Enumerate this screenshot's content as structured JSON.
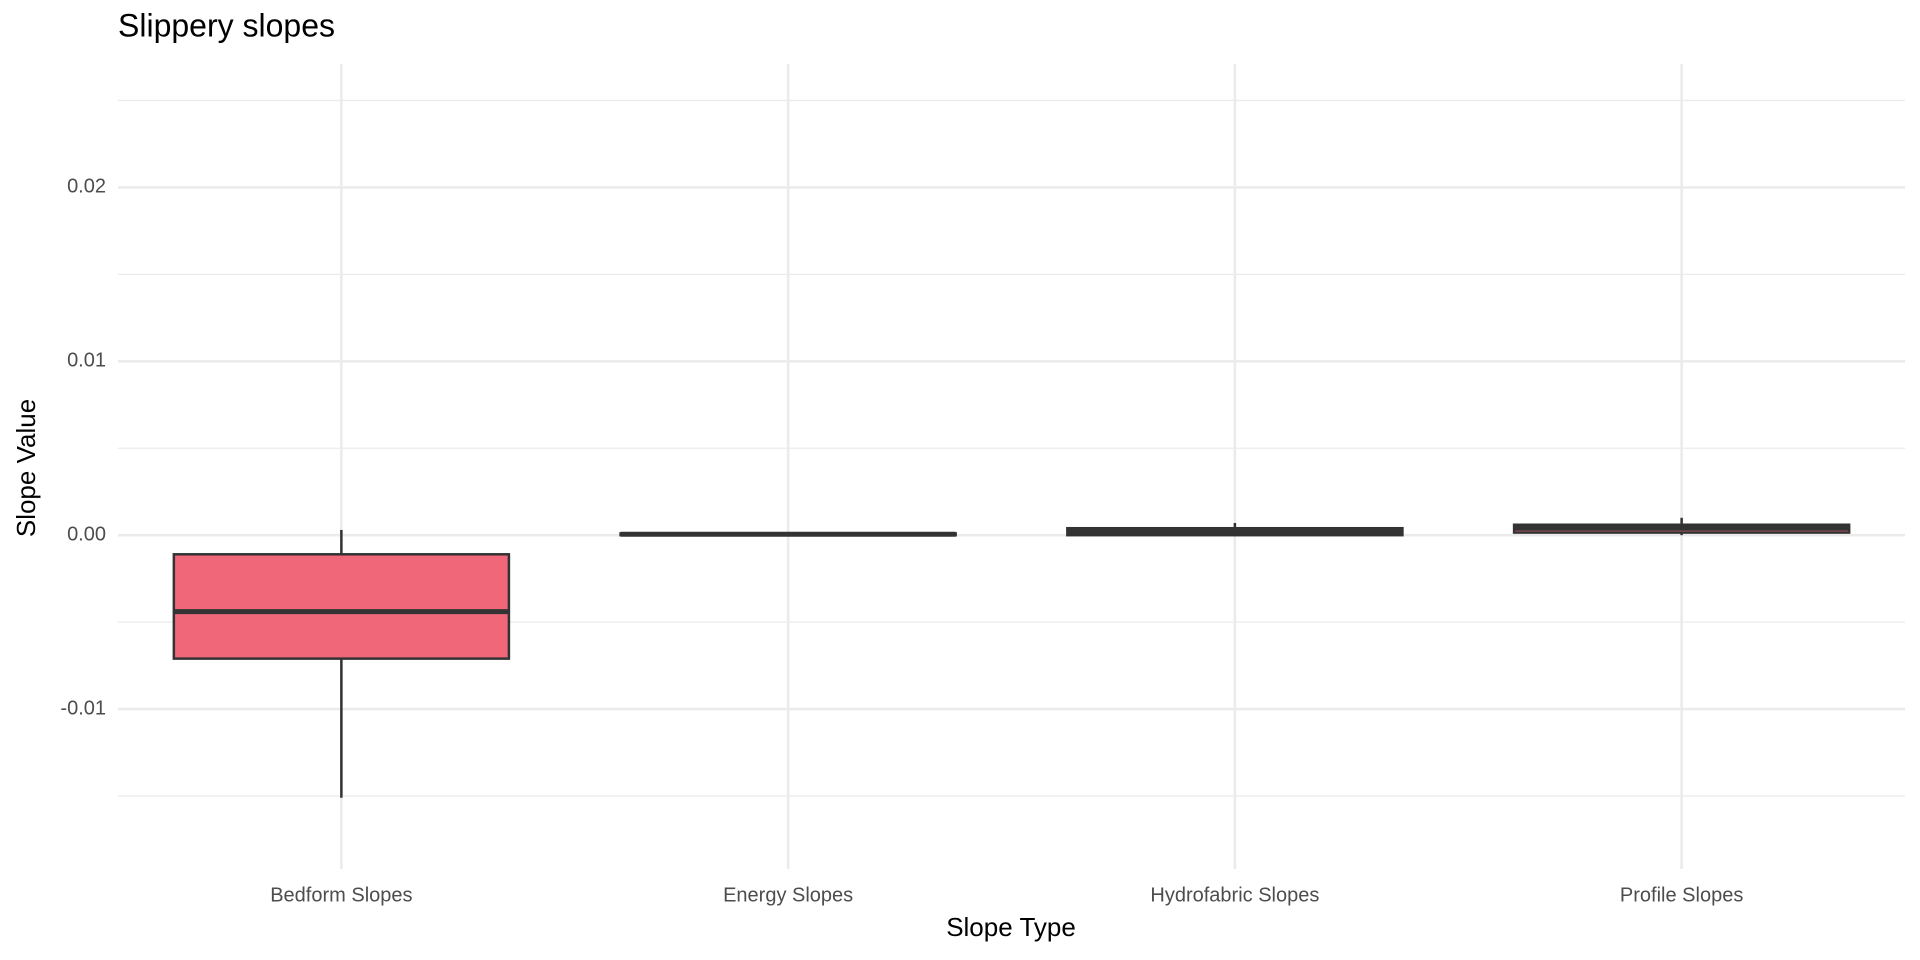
{
  "chart_data": {
    "type": "boxplot",
    "title": "Slippery slopes",
    "x_label": "Slope Type",
    "y_label": "Slope Value",
    "categories": [
      "Bedform Slopes",
      "Energy Slopes",
      "Hydrofabric Slopes",
      "Profile Slopes"
    ],
    "min": [
      -0.0151,
      0,
      0,
      0
    ],
    "q1": [
      -0.0071,
      0,
      0,
      0.00015
    ],
    "median": [
      -0.0044,
      5e-05,
      0.0002,
      0.0004
    ],
    "q3": [
      -0.0011,
      0.0001,
      0.0004,
      0.0006
    ],
    "max": [
      0.0003,
      0.0001,
      0.0007,
      0.001
    ],
    "color": "#f0677a",
    "line_color": "#333333",
    "ylim": [
      -0.0192,
      0.0271
    ],
    "yticks": [
      -0.01,
      {
        "value": 0,
        "label": "0.00"
      },
      0.01,
      0.02
    ],
    "minor_yticks": [
      -0.015,
      -0.005,
      0.005,
      0.015,
      0.025
    ],
    "grid": true
  }
}
